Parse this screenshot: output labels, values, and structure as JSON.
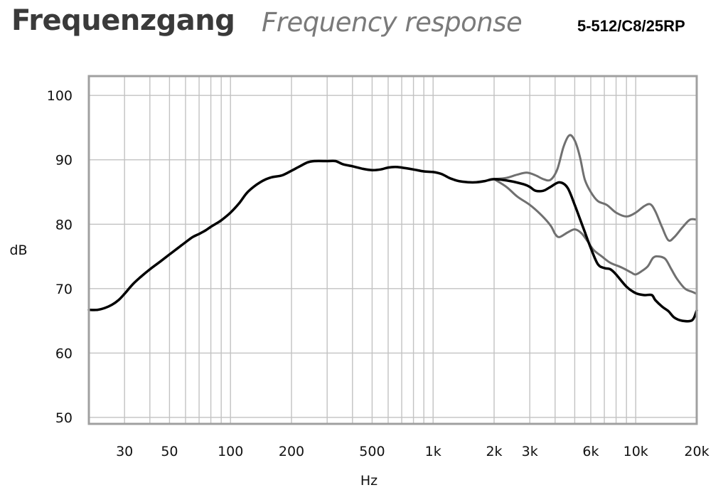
{
  "header": {
    "title_de": "Frequenzgang",
    "title_en": "Frequency response",
    "model": "5-512/C8/25RP"
  },
  "chart_data": {
    "type": "line",
    "xscale": "log",
    "xlabel": "Hz",
    "ylabel": "dB",
    "xlim": [
      20,
      20000
    ],
    "ylim": [
      49,
      103
    ],
    "x_ticks": [
      {
        "value": 30,
        "label": "30"
      },
      {
        "value": 50,
        "label": "50"
      },
      {
        "value": 100,
        "label": "100"
      },
      {
        "value": 200,
        "label": "200"
      },
      {
        "value": 500,
        "label": "500"
      },
      {
        "value": 1000,
        "label": "1k"
      },
      {
        "value": 2000,
        "label": "2k"
      },
      {
        "value": 3000,
        "label": "3k"
      },
      {
        "value": 6000,
        "label": "6k"
      },
      {
        "value": 10000,
        "label": "10k"
      },
      {
        "value": 20000,
        "label": "20k"
      }
    ],
    "y_ticks": [
      {
        "value": 50,
        "label": "50"
      },
      {
        "value": 60,
        "label": "60"
      },
      {
        "value": 70,
        "label": "70"
      },
      {
        "value": 80,
        "label": "80"
      },
      {
        "value": 90,
        "label": "90"
      },
      {
        "value": 100,
        "label": "100"
      }
    ],
    "x_gridlines": [
      20,
      30,
      40,
      50,
      60,
      70,
      80,
      90,
      100,
      200,
      300,
      400,
      500,
      600,
      700,
      800,
      900,
      1000,
      2000,
      3000,
      4000,
      5000,
      6000,
      7000,
      8000,
      9000,
      10000,
      20000
    ],
    "y_gridlines": [
      50,
      60,
      70,
      80,
      90,
      100
    ],
    "grid": true,
    "series": [
      {
        "color": "#707070",
        "width": 3,
        "points": [
          [
            2000,
            87
          ],
          [
            2300,
            87.2
          ],
          [
            2600,
            87.7
          ],
          [
            2900,
            88
          ],
          [
            3200,
            87.6
          ],
          [
            3500,
            87
          ],
          [
            3800,
            86.9
          ],
          [
            4100,
            88.5
          ],
          [
            4400,
            92
          ],
          [
            4700,
            93.8
          ],
          [
            5000,
            93
          ],
          [
            5300,
            90.5
          ],
          [
            5600,
            87
          ],
          [
            6000,
            85
          ],
          [
            6500,
            83.6
          ],
          [
            7200,
            83
          ],
          [
            8000,
            81.8
          ],
          [
            9000,
            81.2
          ],
          [
            10000,
            81.8
          ],
          [
            11000,
            82.8
          ],
          [
            11800,
            83.1
          ],
          [
            12500,
            82
          ],
          [
            13500,
            79.5
          ],
          [
            14500,
            77.5
          ],
          [
            15500,
            78
          ],
          [
            17000,
            79.5
          ],
          [
            18500,
            80.7
          ],
          [
            20000,
            80.7
          ]
        ]
      },
      {
        "color": "#707070",
        "width": 3,
        "points": [
          [
            2000,
            87
          ],
          [
            2300,
            85.8
          ],
          [
            2600,
            84.3
          ],
          [
            3000,
            83
          ],
          [
            3400,
            81.5
          ],
          [
            3800,
            79.8
          ],
          [
            4000,
            78.5
          ],
          [
            4200,
            78
          ],
          [
            4600,
            78.7
          ],
          [
            5000,
            79.2
          ],
          [
            5400,
            78.6
          ],
          [
            5800,
            77.3
          ],
          [
            6200,
            76
          ],
          [
            6800,
            75
          ],
          [
            7500,
            74
          ],
          [
            8500,
            73.3
          ],
          [
            9500,
            72.5
          ],
          [
            10000,
            72.2
          ],
          [
            10800,
            72.8
          ],
          [
            11500,
            73.5
          ],
          [
            12200,
            74.8
          ],
          [
            13000,
            75
          ],
          [
            14000,
            74.6
          ],
          [
            15000,
            73
          ],
          [
            16000,
            71.5
          ],
          [
            17500,
            70
          ],
          [
            19000,
            69.5
          ],
          [
            20000,
            69.2
          ]
        ]
      },
      {
        "color": "#000000",
        "width": 3.5,
        "points": [
          [
            20,
            66.7
          ],
          [
            22,
            66.7
          ],
          [
            24,
            67
          ],
          [
            26,
            67.5
          ],
          [
            28,
            68.2
          ],
          [
            30,
            69.2
          ],
          [
            33,
            70.7
          ],
          [
            36,
            71.8
          ],
          [
            40,
            73
          ],
          [
            45,
            74.2
          ],
          [
            50,
            75.3
          ],
          [
            55,
            76.3
          ],
          [
            60,
            77.2
          ],
          [
            65,
            78
          ],
          [
            70,
            78.5
          ],
          [
            75,
            79
          ],
          [
            80,
            79.6
          ],
          [
            85,
            80.1
          ],
          [
            90,
            80.6
          ],
          [
            100,
            81.8
          ],
          [
            110,
            83.2
          ],
          [
            120,
            84.8
          ],
          [
            130,
            85.8
          ],
          [
            140,
            86.5
          ],
          [
            150,
            87
          ],
          [
            160,
            87.3
          ],
          [
            180,
            87.6
          ],
          [
            200,
            88.3
          ],
          [
            220,
            89
          ],
          [
            240,
            89.6
          ],
          [
            260,
            89.8
          ],
          [
            300,
            89.8
          ],
          [
            330,
            89.8
          ],
          [
            360,
            89.3
          ],
          [
            400,
            89
          ],
          [
            450,
            88.6
          ],
          [
            500,
            88.4
          ],
          [
            550,
            88.5
          ],
          [
            600,
            88.8
          ],
          [
            650,
            88.9
          ],
          [
            700,
            88.8
          ],
          [
            800,
            88.5
          ],
          [
            900,
            88.2
          ],
          [
            1000,
            88.1
          ],
          [
            1100,
            87.8
          ],
          [
            1200,
            87.2
          ],
          [
            1300,
            86.8
          ],
          [
            1400,
            86.6
          ],
          [
            1600,
            86.5
          ],
          [
            1800,
            86.7
          ],
          [
            2000,
            87
          ],
          [
            2400,
            86.7
          ],
          [
            2800,
            86.2
          ],
          [
            3000,
            85.8
          ],
          [
            3200,
            85.2
          ],
          [
            3500,
            85.2
          ],
          [
            3800,
            85.8
          ],
          [
            4200,
            86.5
          ],
          [
            4600,
            85.7
          ],
          [
            5000,
            83
          ],
          [
            5500,
            79.5
          ],
          [
            6000,
            76.3
          ],
          [
            6500,
            73.8
          ],
          [
            7000,
            73.2
          ],
          [
            7500,
            73
          ],
          [
            8000,
            72.2
          ],
          [
            9000,
            70.3
          ],
          [
            10000,
            69.3
          ],
          [
            11000,
            69
          ],
          [
            12000,
            69
          ],
          [
            12500,
            68.2
          ],
          [
            13500,
            67.2
          ],
          [
            14500,
            66.5
          ],
          [
            15500,
            65.5
          ],
          [
            17000,
            65
          ],
          [
            19000,
            65.1
          ],
          [
            20000,
            66.6
          ]
        ]
      }
    ]
  }
}
